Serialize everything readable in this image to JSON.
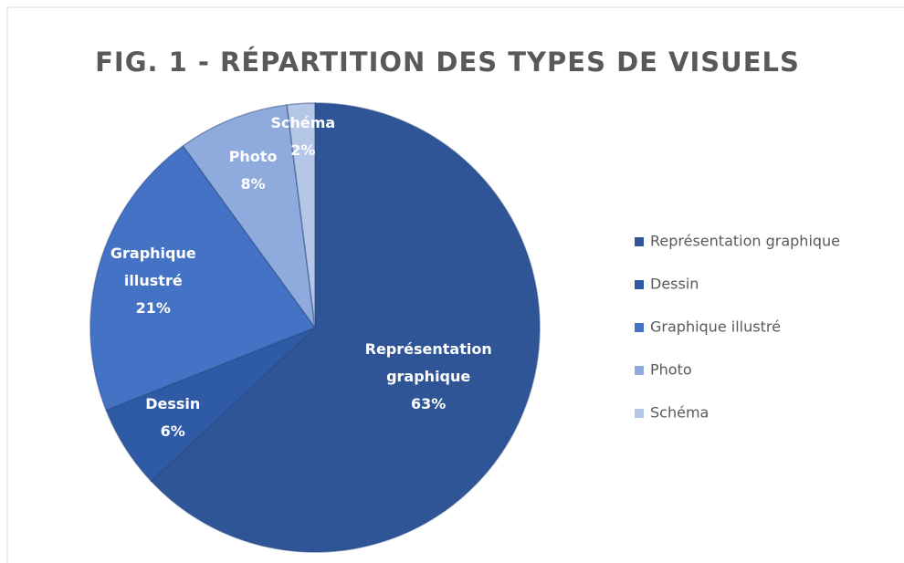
{
  "chart_data": {
    "type": "pie",
    "title": "FIG. 1 - RÉPARTITION DES TYPES DE VISUELS",
    "categories": [
      "Représentation graphique",
      "Dessin",
      "Graphique illustré",
      "Photo",
      "Schéma"
    ],
    "values": [
      63,
      6,
      21,
      8,
      2
    ],
    "value_labels": [
      "63%",
      "6%",
      "21%",
      "8%",
      "2%"
    ],
    "colors": [
      "#2f5597",
      "#2e5aa6",
      "#4472c4",
      "#8faadc",
      "#b4c7e7"
    ],
    "legend": "right"
  }
}
